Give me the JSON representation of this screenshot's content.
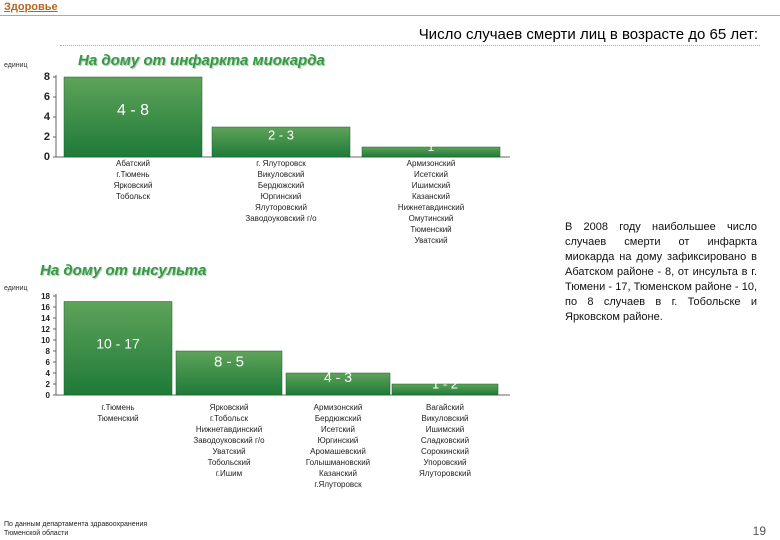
{
  "header": {
    "section_link": "Здоровье"
  },
  "title": "Число случаев смерти лиц в возрасте до 65 лет:",
  "colors": {
    "bar_top": "#5fa35a",
    "bar_bottom": "#1e7a38",
    "title_green": "#2e9e3e",
    "label_white": "#ffffff"
  },
  "chart_data": [
    {
      "type": "bar",
      "title": "На дому от инфаркта миокарда",
      "ylabel": "единиц",
      "ylim": [
        0,
        8
      ],
      "yticks": [
        0,
        2,
        4,
        6,
        8
      ],
      "categories": [
        "4 - 8",
        "2 - 3",
        "1"
      ],
      "values": [
        8,
        3,
        1
      ],
      "group_labels": [
        "Абатский\nг.Тюмень\nЯрковский\nТобольск",
        "г. Ялуторовск\nВикуловский\nБердюжский\nЮргинский\nЯлуторовский\nЗаводоуковский г/о",
        "Армизонский\nИсетский\nИшимский\nКазанский\nНижнетавдинский\nОмутинский\nТюменский\nУватский"
      ]
    },
    {
      "type": "bar",
      "title": "На дому от инсульта",
      "ylabel": "единиц",
      "ylim": [
        0,
        18
      ],
      "yticks": [
        0,
        2,
        4,
        6,
        8,
        10,
        12,
        14,
        16,
        18
      ],
      "categories": [
        "10 - 17",
        "8 - 5",
        "4 - 3",
        "1 - 2"
      ],
      "values": [
        17,
        8,
        4,
        2
      ],
      "group_labels": [
        "г.Тюмень\nТюменский",
        "Ярковский\nг.Тобольск\nНижнетавдинский\nЗаводоуковский г/о\nУватский\nТобольский\nг.Ишим",
        "Армизонский\nБердюжский\nИсетский\nЮргинский\nАромашевский\nГолышмановский\nКазанский\nг.Ялуторовск",
        "Вагайский\nВикуловский\nИшимский\nСладковский\nСорокинский\nУпоровский\nЯлуторовский"
      ]
    }
  ],
  "side_text": "В 2008 году наибольшее число случаев смерти от инфаркта миокарда на дому зафиксировано в Абатском районе - 8, от инсульта в г. Тюмени - 17, Тюменском районе - 10, по 8 случаев в г. Тобольске и Ярковском районе.",
  "footer": "По данным департамента здравоохранения\nТюменской области",
  "page_number": "19"
}
